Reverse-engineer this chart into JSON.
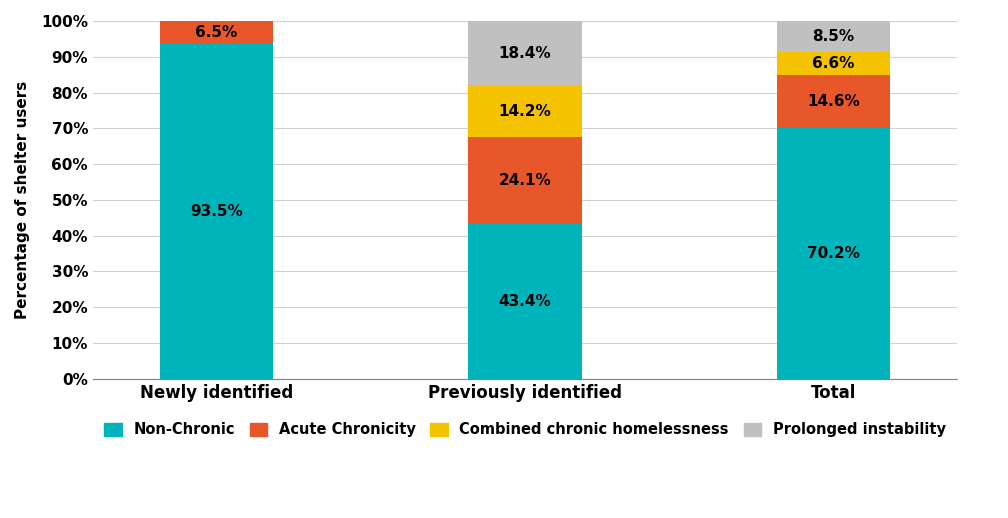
{
  "categories": [
    "Newly identified",
    "Previously identified",
    "Total"
  ],
  "series": [
    {
      "label": "Non-Chronic",
      "color": "#00B4BC",
      "values": [
        93.5,
        43.4,
        70.2
      ]
    },
    {
      "label": "Acute Chronicity",
      "color": "#E8572A",
      "values": [
        6.5,
        24.1,
        14.6
      ]
    },
    {
      "label": "Combined chronic homelessness",
      "color": "#F5C200",
      "values": [
        0.0,
        14.2,
        6.6
      ]
    },
    {
      "label": "Prolonged instability",
      "color": "#C0C0C0",
      "values": [
        0.0,
        18.4,
        8.5
      ]
    }
  ],
  "ylabel": "Percentage of shelter users",
  "ylim": [
    0,
    100
  ],
  "yticks": [
    0,
    10,
    20,
    30,
    40,
    50,
    60,
    70,
    80,
    90,
    100
  ],
  "ytick_labels": [
    "0%",
    "10%",
    "20%",
    "30%",
    "40%",
    "50%",
    "60%",
    "70%",
    "80%",
    "90%",
    "100%"
  ],
  "bar_width": 0.55,
  "bar_positions": [
    0.5,
    2.0,
    3.5
  ],
  "x_lim": [
    -0.1,
    4.1
  ],
  "grid_color": "#D0D0D0",
  "background_color": "#FFFFFF",
  "label_fontsize": 11,
  "tick_fontsize": 11,
  "legend_fontsize": 10.5,
  "ylabel_fontsize": 11
}
